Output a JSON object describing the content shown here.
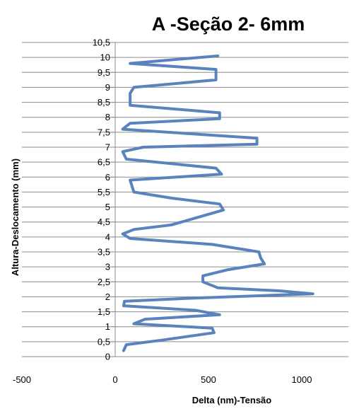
{
  "chart_data": {
    "type": "line",
    "title": "A -Seção 2- 6mm",
    "xlabel": "Delta (nm)-Tensão",
    "ylabel": "Altura-Deslocamento  (mm)",
    "xlim": [
      -500,
      1250
    ],
    "ylim": [
      0,
      10.5
    ],
    "x_ticks": [
      -500,
      0,
      500,
      1000
    ],
    "x_tick_labels": [
      "-500",
      "0",
      "500",
      "1000"
    ],
    "y_ticks": [
      0,
      0.5,
      1,
      1.5,
      2,
      2.5,
      3,
      3.5,
      4,
      4.5,
      5,
      5.5,
      6,
      6.5,
      7,
      7.5,
      8,
      8.5,
      9,
      9.5,
      10,
      10.5
    ],
    "y_tick_labels": [
      "0",
      "0,5",
      "1",
      "1,5",
      "2",
      "2,5",
      "3",
      "3,5",
      "4",
      "4,5",
      "5",
      "5,5",
      "6",
      "6,5",
      "7",
      "7,5",
      "8",
      "8,5",
      "9",
      "9,5",
      "10",
      "10,5"
    ],
    "grid": "horizontal",
    "legend": "none",
    "line_color": "#5a82bd",
    "series": [
      {
        "points": [
          [
            45,
            0.2
          ],
          [
            60,
            0.4
          ],
          [
            250,
            0.55
          ],
          [
            530,
            0.8
          ],
          [
            520,
            0.95
          ],
          [
            100,
            1.1
          ],
          [
            160,
            1.25
          ],
          [
            560,
            1.4
          ],
          [
            430,
            1.55
          ],
          [
            45,
            1.7
          ],
          [
            50,
            1.85
          ],
          [
            400,
            1.95
          ],
          [
            1060,
            2.1
          ],
          [
            880,
            2.2
          ],
          [
            550,
            2.3
          ],
          [
            470,
            2.5
          ],
          [
            470,
            2.7
          ],
          [
            600,
            2.9
          ],
          [
            800,
            3.1
          ],
          [
            780,
            3.3
          ],
          [
            770,
            3.5
          ],
          [
            520,
            3.75
          ],
          [
            80,
            3.95
          ],
          [
            40,
            4.1
          ],
          [
            100,
            4.25
          ],
          [
            300,
            4.4
          ],
          [
            580,
            4.9
          ],
          [
            560,
            5.1
          ],
          [
            300,
            5.3
          ],
          [
            100,
            5.5
          ],
          [
            90,
            5.7
          ],
          [
            80,
            5.9
          ],
          [
            570,
            6.1
          ],
          [
            540,
            6.3
          ],
          [
            60,
            6.6
          ],
          [
            40,
            6.85
          ],
          [
            150,
            7.0
          ],
          [
            760,
            7.1
          ],
          [
            760,
            7.3
          ],
          [
            40,
            7.6
          ],
          [
            80,
            7.8
          ],
          [
            560,
            7.95
          ],
          [
            560,
            8.15
          ],
          [
            80,
            8.4
          ],
          [
            80,
            8.8
          ],
          [
            100,
            9.0
          ],
          [
            540,
            9.25
          ],
          [
            540,
            9.6
          ],
          [
            80,
            9.8
          ],
          [
            550,
            10.05
          ]
        ]
      }
    ]
  }
}
